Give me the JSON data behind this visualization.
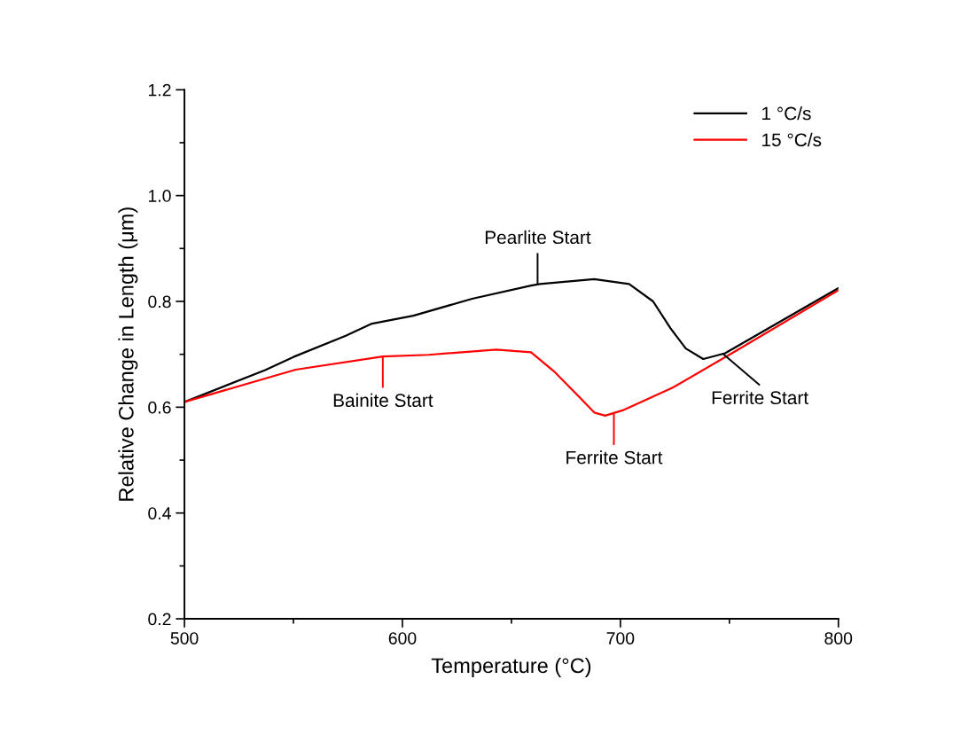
{
  "chart_data": {
    "type": "line",
    "xlabel": "Temperature (°C)",
    "ylabel": "Relative Change in Length (μm)",
    "xlim": [
      500,
      800
    ],
    "xticks": [
      500,
      600,
      700,
      800
    ],
    "ylim": [
      0.2,
      1.2
    ],
    "yticks": [
      {
        "value": 0.2,
        "label": "0.2"
      },
      {
        "value": 0.4,
        "label": "0.4"
      },
      {
        "value": 0.6,
        "label": "0.6"
      },
      {
        "value": 0.8,
        "label": "0.8"
      },
      {
        "value": 1.0,
        "label": "1.0"
      },
      {
        "value": 1.2,
        "label": "1.2"
      }
    ],
    "grid": false,
    "legend": "top right",
    "line_style": "solid",
    "marker": "none",
    "series": [
      {
        "name": "1 °C/s",
        "color": "#000000",
        "x": [
          500,
          537,
          550,
          574,
          586,
          605,
          632,
          659,
          663,
          688,
          704,
          715,
          723,
          730,
          738,
          748,
          800
        ],
        "values": [
          0.61,
          0.67,
          0.695,
          0.735,
          0.758,
          0.773,
          0.805,
          0.83,
          0.833,
          0.842,
          0.833,
          0.8,
          0.749,
          0.711,
          0.691,
          0.702,
          0.825
        ]
      },
      {
        "name": "15 °C/s",
        "color": "#ff0000",
        "x": [
          500,
          551,
          591,
          612,
          643,
          659,
          670,
          681,
          688,
          693,
          701,
          724,
          752,
          800
        ],
        "values": [
          0.61,
          0.671,
          0.696,
          0.699,
          0.709,
          0.704,
          0.666,
          0.62,
          0.59,
          0.584,
          0.594,
          0.637,
          0.704,
          0.821
        ]
      }
    ],
    "annotations": [
      {
        "text": "Pearlite Start",
        "x": 662,
        "y": 0.832
      },
      {
        "text": "Bainite Start",
        "x": 591,
        "y": 0.696
      },
      {
        "text": "Ferrite Start",
        "x": 697,
        "y": 0.588
      },
      {
        "text": "Ferrite Start",
        "x": 747,
        "y": 0.701
      }
    ]
  }
}
